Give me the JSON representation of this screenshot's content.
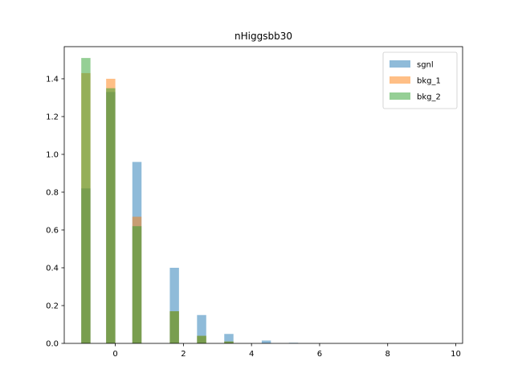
{
  "chart_data": {
    "type": "bar",
    "title": "nHiggsbb30",
    "xlabel": "",
    "ylabel": "",
    "xlim": [
      -1.5,
      10.2
    ],
    "ylim": [
      0,
      1.57
    ],
    "xticks": [
      0,
      2,
      4,
      6,
      8,
      10
    ],
    "xtick_labels": [
      "0",
      "2",
      "4",
      "6",
      "8",
      "10"
    ],
    "yticks": [
      0.0,
      0.2,
      0.4,
      0.6,
      0.8,
      1.0,
      1.2,
      1.4
    ],
    "ytick_labels": [
      "0.0",
      "0.2",
      "0.4",
      "0.6",
      "0.8",
      "1.0",
      "1.2",
      "1.4"
    ],
    "bin_width": 0.27,
    "bin_starts": [
      -1.0,
      -0.27,
      0.5,
      1.6,
      2.4,
      3.2,
      4.3,
      5.1
    ],
    "series": [
      {
        "name": "sgnl",
        "color": "#1f77b4",
        "values": [
          0.82,
          1.33,
          0.96,
          0.4,
          0.15,
          0.05,
          0.015,
          0.003
        ]
      },
      {
        "name": "bkg_1",
        "color": "#ff7f0e",
        "values": [
          1.43,
          1.4,
          0.67,
          0.17,
          0.04,
          0.01,
          0.0,
          0.0
        ]
      },
      {
        "name": "bkg_2",
        "color": "#2ca02c",
        "values": [
          1.51,
          1.35,
          0.62,
          0.17,
          0.04,
          0.01,
          0.0,
          0.0
        ]
      }
    ],
    "legend_position": "top-right",
    "grid": false
  }
}
